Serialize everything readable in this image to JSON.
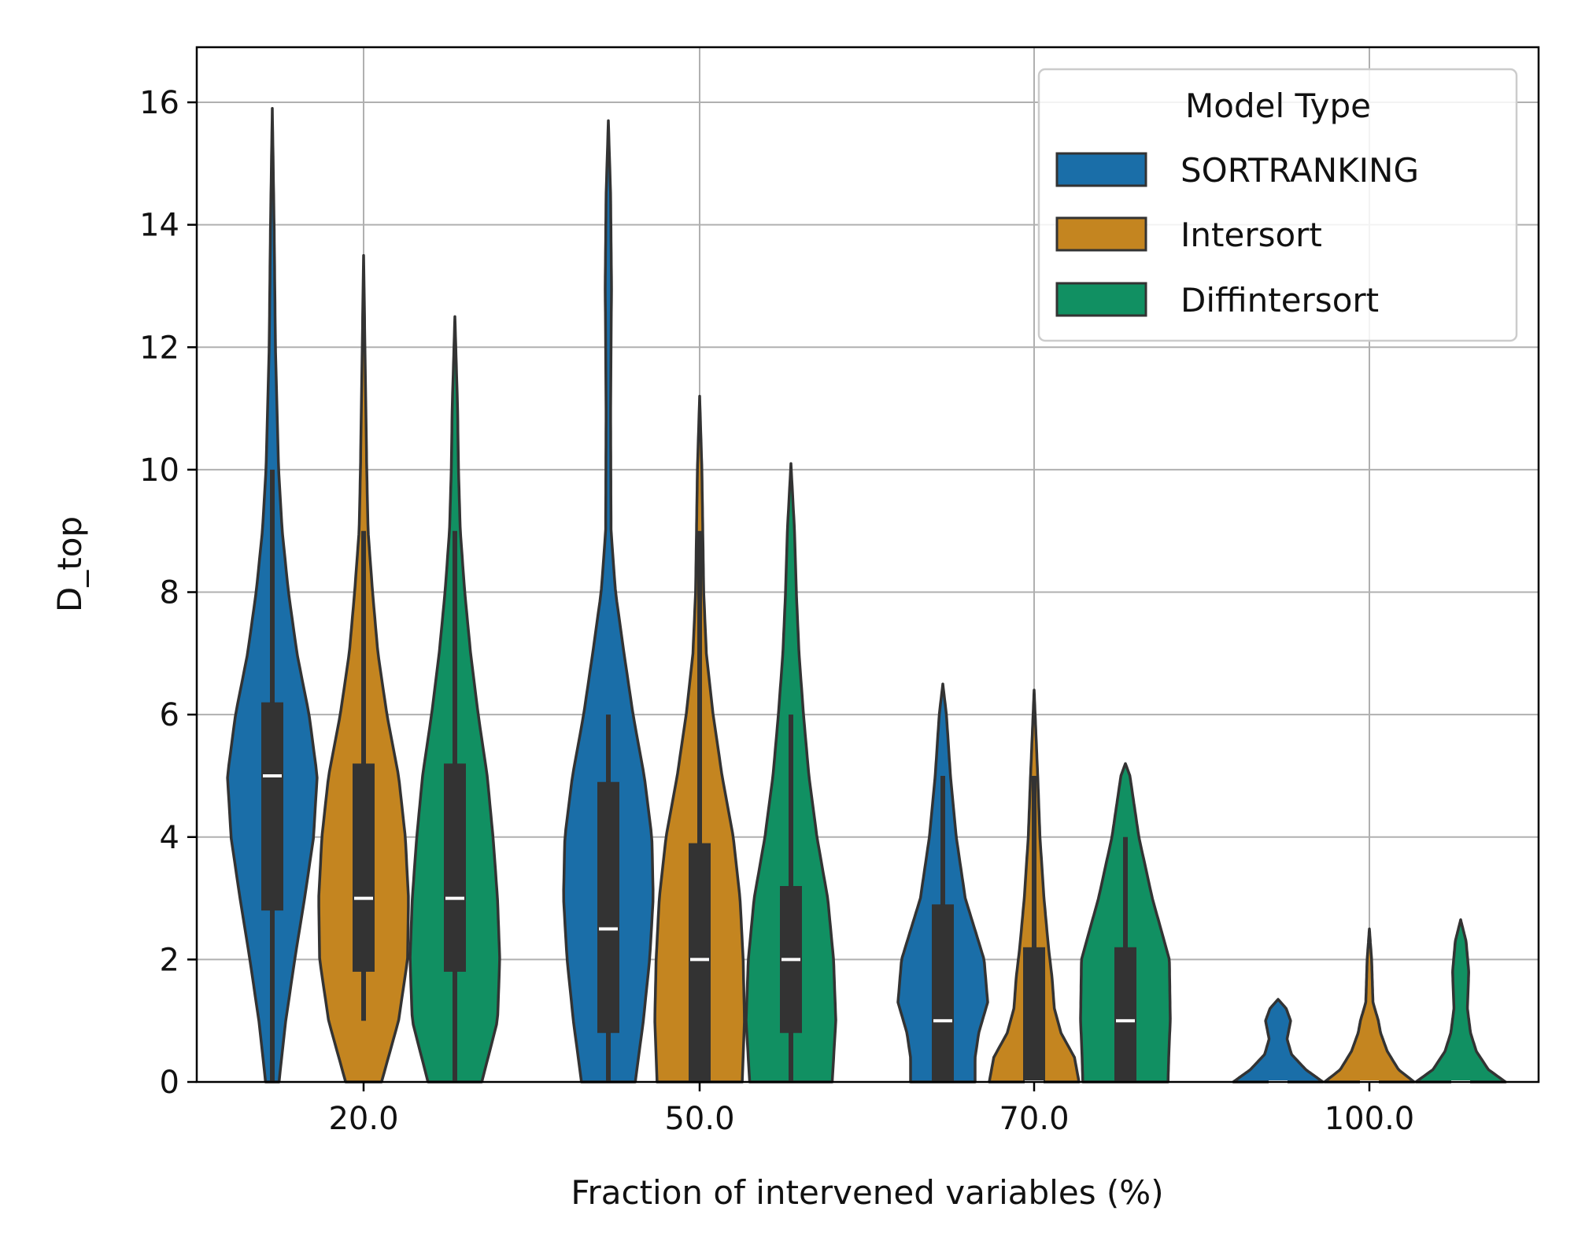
{
  "chart_data": {
    "type": "violin",
    "title": "",
    "xlabel": "Fraction of intervened variables (%)",
    "ylabel": "D_top",
    "ylim": [
      0,
      16.9
    ],
    "yticks": [
      "0",
      "2",
      "4",
      "6",
      "8",
      "10",
      "12",
      "14",
      "16"
    ],
    "categories": [
      "20.0",
      "50.0",
      "70.0",
      "100.0"
    ],
    "grid": true,
    "legend": {
      "title": "Model Type",
      "position": "top-right",
      "entries": [
        "SORTRANKING",
        "Intersort",
        "Diffintersort"
      ]
    },
    "series": [
      {
        "name": "SORTRANKING",
        "color": "#1a6ea8",
        "stats": [
          {
            "min": 0,
            "q1": 2.8,
            "median": 5.0,
            "q3": 6.2,
            "max": 10.0,
            "kde_top": 15.9,
            "kde_bottom": 0,
            "profile": [
              [
                0,
                0.15
              ],
              [
                1,
                0.3
              ],
              [
                2,
                0.5
              ],
              [
                3,
                0.72
              ],
              [
                4,
                0.92
              ],
              [
                5,
                1.0
              ],
              [
                6,
                0.82
              ],
              [
                7,
                0.55
              ],
              [
                8,
                0.36
              ],
              [
                9,
                0.22
              ],
              [
                10,
                0.14
              ],
              [
                12,
                0.07
              ],
              [
                14,
                0.04
              ],
              [
                15.9,
                0.0
              ]
            ]
          },
          {
            "min": 0,
            "q1": 0.8,
            "median": 2.5,
            "q3": 4.9,
            "max": 6.0,
            "kde_top": 15.7,
            "kde_bottom": 0,
            "profile": [
              [
                0,
                0.6
              ],
              [
                1,
                0.78
              ],
              [
                2,
                0.92
              ],
              [
                3,
                1.0
              ],
              [
                4,
                0.97
              ],
              [
                5,
                0.8
              ],
              [
                6,
                0.55
              ],
              [
                7,
                0.35
              ],
              [
                8,
                0.16
              ],
              [
                9,
                0.06
              ],
              [
                11,
                0.05
              ],
              [
                13,
                0.07
              ],
              [
                14.5,
                0.05
              ],
              [
                15.7,
                0.0
              ]
            ]
          },
          {
            "min": 0,
            "q1": 0,
            "median": 1.0,
            "q3": 2.9,
            "max": 5.0,
            "kde_top": 6.5,
            "kde_bottom": 0,
            "profile": [
              [
                0,
                0.72
              ],
              [
                0.4,
                0.72
              ],
              [
                0.8,
                0.8
              ],
              [
                1.3,
                1.0
              ],
              [
                2,
                0.92
              ],
              [
                3,
                0.5
              ],
              [
                4,
                0.3
              ],
              [
                5,
                0.17
              ],
              [
                6,
                0.08
              ],
              [
                6.5,
                0.0
              ]
            ]
          },
          {
            "min": 0,
            "q1": 0,
            "median": 0,
            "q3": 0,
            "max": 0,
            "kde_top": 1.35,
            "kde_bottom": 0,
            "profile": [
              [
                0,
                1.0
              ],
              [
                0.2,
                0.62
              ],
              [
                0.45,
                0.3
              ],
              [
                0.7,
                0.2
              ],
              [
                1.0,
                0.28
              ],
              [
                1.2,
                0.18
              ],
              [
                1.35,
                0.0
              ]
            ]
          }
        ]
      },
      {
        "name": "Intersort",
        "color": "#c48520",
        "stats": [
          {
            "min": 1.0,
            "q1": 1.8,
            "median": 3.0,
            "q3": 5.2,
            "max": 9.0,
            "kde_top": 13.5,
            "kde_bottom": 0,
            "profile": [
              [
                0,
                0.4
              ],
              [
                1,
                0.78
              ],
              [
                2,
                0.98
              ],
              [
                3,
                1.0
              ],
              [
                4,
                0.93
              ],
              [
                5,
                0.78
              ],
              [
                6,
                0.52
              ],
              [
                7,
                0.32
              ],
              [
                8,
                0.2
              ],
              [
                9,
                0.1
              ],
              [
                10,
                0.07
              ],
              [
                11,
                0.05
              ],
              [
                12,
                0.03
              ],
              [
                13.5,
                0.0
              ]
            ]
          },
          {
            "min": 0,
            "q1": 0,
            "median": 2.0,
            "q3": 3.9,
            "max": 9.0,
            "kde_top": 11.2,
            "kde_bottom": 0,
            "profile": [
              [
                0,
                0.95
              ],
              [
                1,
                1.0
              ],
              [
                2,
                0.97
              ],
              [
                3,
                0.9
              ],
              [
                4,
                0.75
              ],
              [
                5,
                0.5
              ],
              [
                6,
                0.3
              ],
              [
                7,
                0.15
              ],
              [
                8,
                0.09
              ],
              [
                9,
                0.07
              ],
              [
                10,
                0.05
              ],
              [
                11.2,
                0.0
              ]
            ]
          },
          {
            "min": 0,
            "q1": 0,
            "median": 0,
            "q3": 2.2,
            "max": 5.0,
            "kde_top": 6.4,
            "kde_bottom": 0,
            "profile": [
              [
                0,
                1.0
              ],
              [
                0.4,
                0.9
              ],
              [
                0.8,
                0.6
              ],
              [
                1.2,
                0.45
              ],
              [
                1.7,
                0.4
              ],
              [
                2.2,
                0.32
              ],
              [
                3,
                0.22
              ],
              [
                4,
                0.13
              ],
              [
                5,
                0.08
              ],
              [
                6.4,
                0.0
              ]
            ]
          },
          {
            "min": 0,
            "q1": 0,
            "median": 0,
            "q3": 0,
            "max": 0,
            "kde_top": 2.5,
            "kde_bottom": 0,
            "profile": [
              [
                0,
                1.0
              ],
              [
                0.2,
                0.65
              ],
              [
                0.5,
                0.4
              ],
              [
                0.8,
                0.25
              ],
              [
                1.0,
                0.2
              ],
              [
                1.3,
                0.08
              ],
              [
                2.0,
                0.05
              ],
              [
                2.5,
                0.0
              ]
            ]
          }
        ]
      },
      {
        "name": "Diffintersort",
        "color": "#119062",
        "stats": [
          {
            "min": 0,
            "q1": 1.8,
            "median": 3.0,
            "q3": 5.2,
            "max": 9.0,
            "kde_top": 12.5,
            "kde_bottom": 0,
            "profile": [
              [
                0,
                0.6
              ],
              [
                1,
                0.95
              ],
              [
                2,
                1.0
              ],
              [
                3,
                0.95
              ],
              [
                4,
                0.85
              ],
              [
                5,
                0.72
              ],
              [
                6,
                0.52
              ],
              [
                7,
                0.35
              ],
              [
                8,
                0.22
              ],
              [
                9,
                0.12
              ],
              [
                10,
                0.08
              ],
              [
                11,
                0.06
              ],
              [
                12.5,
                0.0
              ]
            ]
          },
          {
            "min": 0,
            "q1": 0.8,
            "median": 2.0,
            "q3": 3.2,
            "max": 6.0,
            "kde_top": 10.1,
            "kde_bottom": 0,
            "profile": [
              [
                0,
                0.92
              ],
              [
                1,
                1.0
              ],
              [
                2,
                0.95
              ],
              [
                3,
                0.82
              ],
              [
                4,
                0.58
              ],
              [
                5,
                0.4
              ],
              [
                6,
                0.28
              ],
              [
                7,
                0.18
              ],
              [
                8,
                0.12
              ],
              [
                9,
                0.08
              ],
              [
                10.1,
                0.0
              ]
            ]
          },
          {
            "min": 0,
            "q1": 0,
            "median": 1.0,
            "q3": 2.2,
            "max": 4.0,
            "kde_top": 5.2,
            "kde_bottom": 0,
            "profile": [
              [
                0,
                0.95
              ],
              [
                0.5,
                0.97
              ],
              [
                1,
                1.0
              ],
              [
                2,
                0.98
              ],
              [
                3,
                0.6
              ],
              [
                4,
                0.3
              ],
              [
                5,
                0.1
              ],
              [
                5.2,
                0.0
              ]
            ]
          },
          {
            "min": 0,
            "q1": 0,
            "median": 0,
            "q3": 0,
            "max": 0,
            "kde_top": 2.65,
            "kde_bottom": 0,
            "profile": [
              [
                0,
                1.0
              ],
              [
                0.2,
                0.62
              ],
              [
                0.5,
                0.35
              ],
              [
                0.8,
                0.22
              ],
              [
                1.2,
                0.15
              ],
              [
                1.8,
                0.18
              ],
              [
                2.3,
                0.12
              ],
              [
                2.65,
                0.0
              ]
            ]
          }
        ]
      }
    ]
  }
}
